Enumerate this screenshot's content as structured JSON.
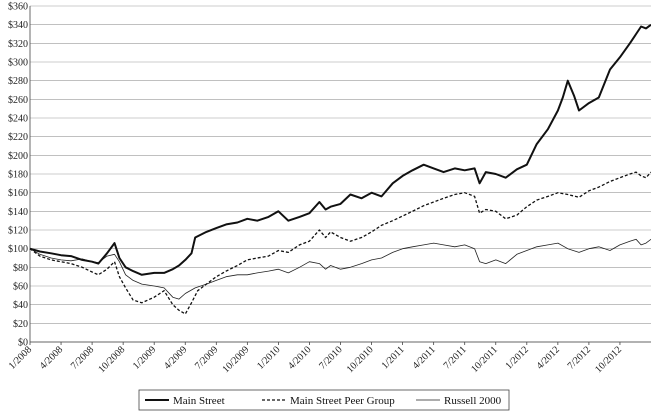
{
  "chart_data": {
    "type": "line",
    "title": "",
    "xlabel": "",
    "ylabel": "",
    "ylim": [
      0,
      360
    ],
    "y_ticks": [
      "$0",
      "$20",
      "$40",
      "$60",
      "$80",
      "$100",
      "$120",
      "$140",
      "$160",
      "$180",
      "$200",
      "$220",
      "$240",
      "$260",
      "$280",
      "$300",
      "$320",
      "$340",
      "$360"
    ],
    "y_tick_values": [
      0,
      20,
      40,
      60,
      80,
      100,
      120,
      140,
      160,
      180,
      200,
      220,
      240,
      260,
      280,
      300,
      320,
      340,
      360
    ],
    "x_ticks": [
      "1/2008",
      "4/2008",
      "7/2008",
      "10/2008",
      "1/2009",
      "4/2009",
      "7/2009",
      "10/2009",
      "1/2010",
      "4/2010",
      "7/2010",
      "10/2010",
      "1/2011",
      "4/2011",
      "7/2011",
      "10/2011",
      "1/2012",
      "4/2012",
      "7/2012",
      "10/2012"
    ],
    "x_tick_values": [
      2008.0,
      2008.25,
      2008.5,
      2008.75,
      2009.0,
      2009.25,
      2009.5,
      2009.75,
      2010.0,
      2010.25,
      2010.5,
      2010.75,
      2011.0,
      2011.25,
      2011.5,
      2011.75,
      2012.0,
      2012.25,
      2012.5,
      2012.75
    ],
    "xlim": [
      2008.0,
      2013.0
    ],
    "grid": "horizontal",
    "legend_position": "bottom",
    "series": [
      {
        "name": "Main Street",
        "style": "thick-solid",
        "x": [
          2008.0,
          2008.08,
          2008.17,
          2008.25,
          2008.33,
          2008.42,
          2008.5,
          2008.55,
          2008.62,
          2008.68,
          2008.72,
          2008.77,
          2008.83,
          2008.9,
          2009.0,
          2009.08,
          2009.15,
          2009.2,
          2009.25,
          2009.3,
          2009.33,
          2009.42,
          2009.5,
          2009.58,
          2009.67,
          2009.75,
          2009.83,
          2009.92,
          2010.0,
          2010.08,
          2010.17,
          2010.25,
          2010.33,
          2010.38,
          2010.42,
          2010.5,
          2010.58,
          2010.67,
          2010.75,
          2010.83,
          2010.92,
          2011.0,
          2011.08,
          2011.17,
          2011.25,
          2011.33,
          2011.42,
          2011.5,
          2011.58,
          2011.62,
          2011.67,
          2011.75,
          2011.83,
          2011.92,
          2012.0,
          2012.08,
          2012.17,
          2012.25,
          2012.29,
          2012.33,
          2012.38,
          2012.42,
          2012.5,
          2012.58,
          2012.67,
          2012.75,
          2012.83,
          2012.88,
          2012.92,
          2012.96,
          2013.0
        ],
        "values": [
          100,
          97,
          95,
          93,
          92,
          88,
          86,
          84,
          95,
          106,
          90,
          80,
          76,
          72,
          74,
          74,
          78,
          82,
          88,
          95,
          112,
          118,
          122,
          126,
          128,
          132,
          130,
          134,
          140,
          130,
          134,
          138,
          150,
          142,
          145,
          148,
          158,
          154,
          160,
          156,
          170,
          178,
          184,
          190,
          186,
          182,
          186,
          184,
          186,
          170,
          182,
          180,
          176,
          185,
          190,
          212,
          228,
          248,
          262,
          280,
          264,
          248,
          256,
          262,
          292,
          305,
          320,
          330,
          338,
          336,
          340
        ]
      },
      {
        "name": "Main Street Peer Group",
        "style": "dashed",
        "x": [
          2008.0,
          2008.08,
          2008.17,
          2008.25,
          2008.33,
          2008.42,
          2008.5,
          2008.55,
          2008.62,
          2008.68,
          2008.72,
          2008.77,
          2008.83,
          2008.9,
          2009.0,
          2009.08,
          2009.15,
          2009.2,
          2009.25,
          2009.3,
          2009.35,
          2009.42,
          2009.5,
          2009.58,
          2009.67,
          2009.75,
          2009.83,
          2009.92,
          2010.0,
          2010.08,
          2010.17,
          2010.25,
          2010.33,
          2010.38,
          2010.42,
          2010.5,
          2010.58,
          2010.67,
          2010.75,
          2010.83,
          2010.92,
          2011.0,
          2011.08,
          2011.17,
          2011.25,
          2011.33,
          2011.42,
          2011.5,
          2011.58,
          2011.62,
          2011.67,
          2011.75,
          2011.83,
          2011.92,
          2012.0,
          2012.08,
          2012.17,
          2012.25,
          2012.33,
          2012.42,
          2012.5,
          2012.58,
          2012.67,
          2012.75,
          2012.83,
          2012.88,
          2012.92,
          2012.96,
          2013.0
        ],
        "values": [
          100,
          92,
          88,
          86,
          84,
          80,
          75,
          72,
          78,
          86,
          70,
          58,
          45,
          42,
          48,
          55,
          40,
          34,
          30,
          42,
          55,
          62,
          70,
          76,
          82,
          88,
          90,
          92,
          98,
          96,
          104,
          108,
          120,
          112,
          118,
          112,
          108,
          112,
          118,
          125,
          130,
          135,
          140,
          146,
          150,
          154,
          158,
          160,
          156,
          138,
          142,
          140,
          132,
          136,
          145,
          152,
          156,
          160,
          158,
          155,
          162,
          166,
          172,
          176,
          180,
          182,
          178,
          176,
          182
        ]
      },
      {
        "name": "Russell 2000",
        "style": "thin-solid",
        "x": [
          2008.0,
          2008.08,
          2008.17,
          2008.25,
          2008.33,
          2008.42,
          2008.5,
          2008.55,
          2008.62,
          2008.68,
          2008.72,
          2008.77,
          2008.83,
          2008.9,
          2009.0,
          2009.08,
          2009.15,
          2009.2,
          2009.25,
          2009.33,
          2009.42,
          2009.5,
          2009.58,
          2009.67,
          2009.75,
          2009.83,
          2009.92,
          2010.0,
          2010.08,
          2010.17,
          2010.25,
          2010.33,
          2010.38,
          2010.42,
          2010.5,
          2010.58,
          2010.67,
          2010.75,
          2010.83,
          2010.92,
          2011.0,
          2011.08,
          2011.17,
          2011.25,
          2011.33,
          2011.42,
          2011.5,
          2011.58,
          2011.62,
          2011.67,
          2011.75,
          2011.83,
          2011.92,
          2012.0,
          2012.08,
          2012.17,
          2012.25,
          2012.33,
          2012.42,
          2012.5,
          2012.58,
          2012.67,
          2012.75,
          2012.83,
          2012.88,
          2012.92,
          2012.96,
          2013.0
        ],
        "values": [
          100,
          94,
          90,
          88,
          87,
          89,
          86,
          85,
          92,
          94,
          86,
          72,
          66,
          62,
          60,
          58,
          48,
          46,
          52,
          58,
          62,
          66,
          70,
          72,
          72,
          74,
          76,
          78,
          74,
          80,
          86,
          84,
          78,
          82,
          78,
          80,
          84,
          88,
          90,
          96,
          100,
          102,
          104,
          106,
          104,
          102,
          104,
          100,
          86,
          84,
          88,
          84,
          94,
          98,
          102,
          104,
          106,
          100,
          96,
          100,
          102,
          98,
          104,
          108,
          110,
          104,
          106,
          110
        ]
      }
    ]
  }
}
